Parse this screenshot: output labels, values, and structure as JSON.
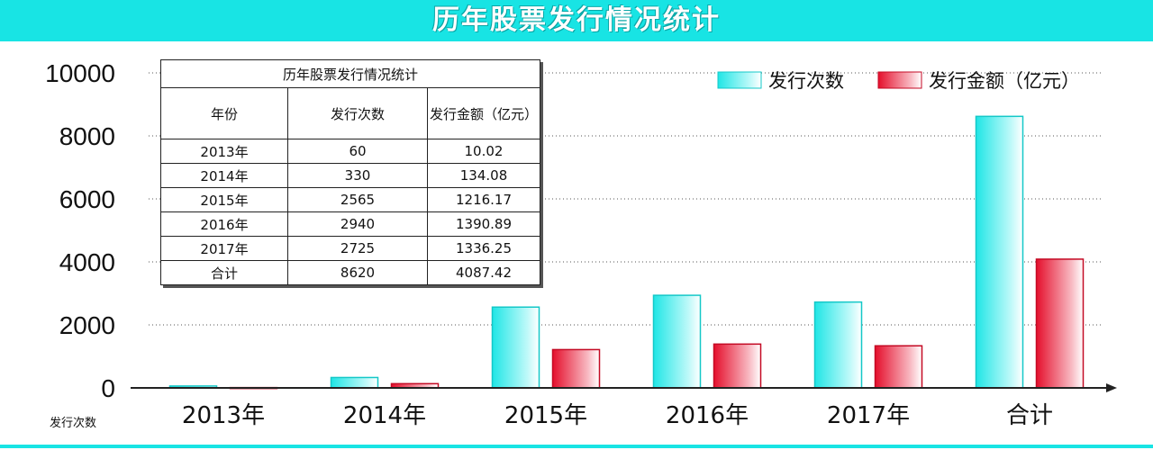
{
  "banner": {
    "title": "历年股票发行情况统计"
  },
  "legend": {
    "count": "发行次数",
    "amount": "发行金额（亿元）"
  },
  "y_unit_label": "发行次数",
  "colors": {
    "count": "#22eaea",
    "amount": "#e8102e",
    "banner": "#18e4e4"
  },
  "chart_data": {
    "type": "bar",
    "categories": [
      "2013年",
      "2014年",
      "2015年",
      "2016年",
      "2017年",
      "合计"
    ],
    "series": [
      {
        "name": "发行次数",
        "values": [
          60,
          330,
          2565,
          2940,
          2725,
          8620
        ]
      },
      {
        "name": "发行金额（亿元）",
        "values": [
          10.02,
          134.08,
          1216.17,
          1390.89,
          1336.25,
          4087.42
        ]
      }
    ],
    "y_ticks": [
      "0",
      "2000",
      "4000",
      "6000",
      "8000",
      "10000"
    ],
    "ylim": [
      0,
      10000
    ],
    "grid": true,
    "legend_position": "top-right"
  },
  "table": {
    "title": "历年股票发行情况统计",
    "headers": [
      "年份",
      "发行次数",
      "发行金额（亿元）"
    ],
    "rows": [
      [
        "2013年",
        "60",
        "10.02"
      ],
      [
        "2014年",
        "330",
        "134.08"
      ],
      [
        "2015年",
        "2565",
        "1216.17"
      ],
      [
        "2016年",
        "2940",
        "1390.89"
      ],
      [
        "2017年",
        "2725",
        "1336.25"
      ],
      [
        "合计",
        "8620",
        "4087.42"
      ]
    ]
  }
}
